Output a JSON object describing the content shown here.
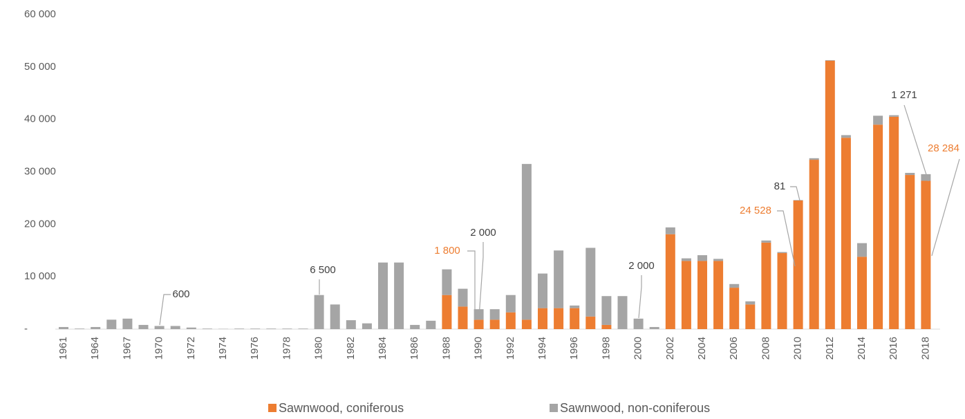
{
  "chart_data": {
    "type": "stacked-bar",
    "categories": [
      "1961",
      null,
      "1964",
      null,
      "1967",
      null,
      "1970",
      null,
      "1972",
      null,
      "1974",
      null,
      "1976",
      null,
      "1978",
      null,
      "1980",
      null,
      "1982",
      null,
      "1984",
      null,
      "1986",
      null,
      "1988",
      null,
      "1990",
      null,
      "1992",
      null,
      "1994",
      null,
      "1996",
      null,
      "1998",
      null,
      "2000",
      null,
      "2002",
      null,
      "2004",
      null,
      "2006",
      null,
      "2008",
      null,
      "2010",
      null,
      "2012",
      null,
      "2014",
      null,
      "2016",
      null,
      "2018"
    ],
    "series": [
      {
        "name": "Sawnwood, coniferous",
        "color": "#ed7d31",
        "values": [
          0,
          0,
          0,
          0,
          0,
          0,
          0,
          0,
          0,
          0,
          0,
          0,
          0,
          0,
          0,
          0,
          0,
          0,
          0,
          0,
          0,
          0,
          0,
          0,
          6500,
          4300,
          1800,
          1800,
          3200,
          1800,
          4000,
          4000,
          4000,
          2400,
          800,
          0,
          0,
          0,
          18100,
          13000,
          13000,
          13000,
          7900,
          4700,
          16500,
          14500,
          24528,
          32300,
          51200,
          36500,
          13800,
          39000,
          40500,
          29400,
          28284
        ],
        "value_labels": [
          null,
          null,
          null,
          null,
          null,
          null,
          null,
          null,
          null,
          null,
          null,
          null,
          null,
          null,
          null,
          null,
          null,
          null,
          null,
          null,
          null,
          null,
          null,
          null,
          null,
          null,
          "1 800",
          null,
          null,
          null,
          null,
          null,
          null,
          null,
          null,
          null,
          null,
          null,
          null,
          null,
          null,
          null,
          null,
          null,
          null,
          null,
          "24 528",
          null,
          null,
          null,
          null,
          null,
          null,
          null,
          "28 284"
        ]
      },
      {
        "name": "Sawnwood, non-coniferous",
        "color": "#a5a5a5",
        "values": [
          400,
          100,
          400,
          1800,
          2000,
          800,
          600,
          600,
          300,
          100,
          50,
          100,
          100,
          100,
          100,
          100,
          6500,
          4700,
          1700,
          1100,
          12700,
          12700,
          800,
          1600,
          4900,
          3400,
          2000,
          2000,
          3300,
          29700,
          6600,
          11000,
          500,
          13100,
          5500,
          6300,
          2000,
          400,
          1300,
          500,
          1100,
          400,
          700,
          600,
          400,
          200,
          81,
          300,
          100,
          500,
          2600,
          1700,
          300,
          400,
          1271
        ],
        "value_labels": [
          null,
          null,
          null,
          null,
          null,
          null,
          "600",
          null,
          null,
          null,
          null,
          null,
          null,
          null,
          null,
          null,
          "6 500",
          null,
          null,
          null,
          null,
          null,
          null,
          null,
          null,
          null,
          "2 000",
          null,
          null,
          null,
          null,
          null,
          null,
          null,
          null,
          null,
          "2 000",
          null,
          null,
          null,
          null,
          null,
          null,
          null,
          null,
          null,
          "81",
          null,
          null,
          null,
          null,
          null,
          null,
          null,
          "1 271"
        ]
      }
    ],
    "ylim": [
      0,
      60000
    ],
    "yticks": [
      {
        "value": 0,
        "label": "-"
      },
      {
        "value": 10000,
        "label": "10 000"
      },
      {
        "value": 20000,
        "label": "20 000"
      },
      {
        "value": 30000,
        "label": "30 000"
      },
      {
        "value": 40000,
        "label": "40 000"
      },
      {
        "value": 50000,
        "label": "50 000"
      },
      {
        "value": 60000,
        "label": "60 000"
      }
    ],
    "grid": false,
    "legend": "bottom"
  }
}
